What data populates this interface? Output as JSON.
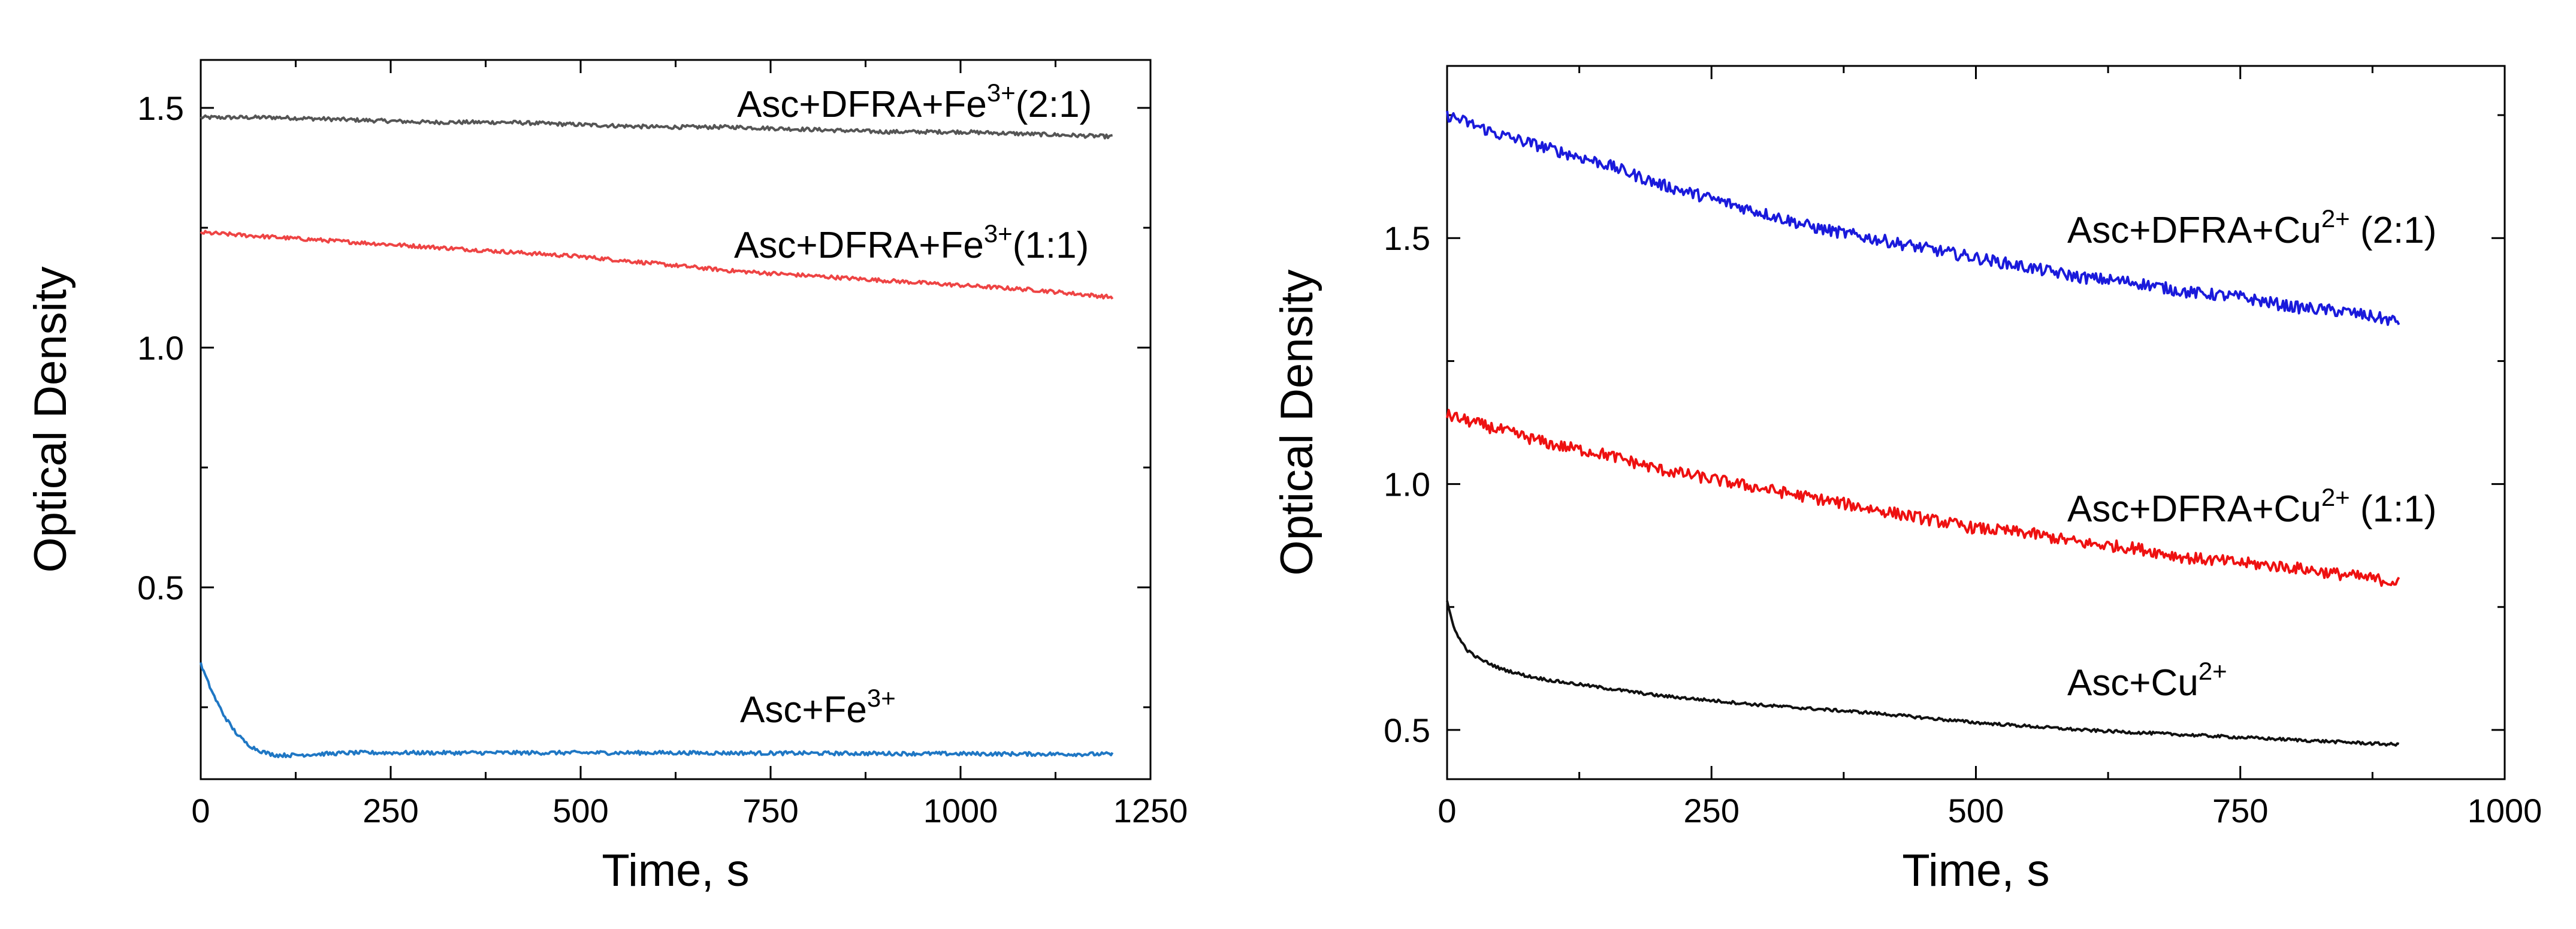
{
  "chart_data": [
    {
      "type": "line",
      "title": "",
      "xlabel": "Time, s",
      "ylabel": "Optical Density",
      "xlim": [
        0,
        1250
      ],
      "ylim": [
        0.1,
        1.6
      ],
      "xticks": [
        "0",
        "250",
        "500",
        "750",
        "1000",
        "1250"
      ],
      "yticks": [
        "0.5",
        "1.0",
        "1.5"
      ],
      "series": [
        {
          "name": "Asc+DFRA+Fe3+(2:1)",
          "label_main": "Asc+DFRA+Fe",
          "label_sup": "3+",
          "label_tail": "(2:1)",
          "color": "#555555",
          "x": [
            0,
            100,
            200,
            300,
            400,
            500,
            600,
            700,
            800,
            900,
            1000,
            1100,
            1200
          ],
          "values": [
            1.48,
            1.48,
            1.475,
            1.47,
            1.47,
            1.465,
            1.46,
            1.46,
            1.455,
            1.45,
            1.45,
            1.445,
            1.44
          ]
        },
        {
          "name": "Asc+DFRA+Fe3+(1:1)",
          "label_main": "Asc+DFRA+Fe",
          "label_sup": "3+",
          "label_tail": "(1:1)",
          "color": "#ee4444",
          "x": [
            0,
            100,
            200,
            300,
            400,
            500,
            600,
            700,
            800,
            900,
            1000,
            1100,
            1200
          ],
          "values": [
            1.24,
            1.23,
            1.22,
            1.21,
            1.2,
            1.19,
            1.175,
            1.16,
            1.15,
            1.14,
            1.13,
            1.12,
            1.105
          ]
        },
        {
          "name": "Asc+Fe3+",
          "label_main": "Asc+Fe",
          "label_sup": "3+",
          "label_tail": "",
          "color": "#1f77c4",
          "x": [
            0,
            10,
            20,
            30,
            40,
            50,
            60,
            70,
            80,
            90,
            100,
            120,
            150,
            200,
            300,
            400,
            600,
            800,
            1000,
            1200
          ],
          "values": [
            0.34,
            0.3,
            0.265,
            0.235,
            0.21,
            0.19,
            0.175,
            0.165,
            0.158,
            0.153,
            0.15,
            0.15,
            0.152,
            0.155,
            0.155,
            0.155,
            0.155,
            0.154,
            0.153,
            0.152
          ]
        }
      ]
    },
    {
      "type": "line",
      "title": "",
      "xlabel": "Time, s",
      "ylabel": "Optical Density",
      "xlim": [
        0,
        1000
      ],
      "ylim": [
        0.4,
        1.85
      ],
      "xticks": [
        "0",
        "250",
        "500",
        "750",
        "1000"
      ],
      "yticks": [
        "0.5",
        "1.0",
        "1.5"
      ],
      "series": [
        {
          "name": "Asc+DFRA+Cu2+ (2:1)",
          "label_main": "Asc+DFRA+Cu",
          "label_sup": "2+",
          "label_tail": " (2:1)",
          "color": "#1a1adb",
          "x": [
            0,
            50,
            100,
            150,
            200,
            250,
            300,
            350,
            400,
            450,
            500,
            550,
            600,
            650,
            700,
            750,
            800,
            850,
            900
          ],
          "values": [
            1.75,
            1.71,
            1.68,
            1.65,
            1.61,
            1.58,
            1.55,
            1.52,
            1.5,
            1.48,
            1.46,
            1.44,
            1.42,
            1.41,
            1.39,
            1.38,
            1.36,
            1.35,
            1.33
          ]
        },
        {
          "name": "Asc+DFRA+Cu2+ (1:1)",
          "label_main": "Asc+DFRA+Cu",
          "label_sup": "2+",
          "label_tail": " (1:1)",
          "color": "#ee1111",
          "x": [
            0,
            50,
            100,
            150,
            200,
            250,
            300,
            350,
            400,
            450,
            500,
            550,
            600,
            650,
            700,
            750,
            800,
            850,
            900
          ],
          "values": [
            1.14,
            1.11,
            1.08,
            1.06,
            1.03,
            1.01,
            0.99,
            0.97,
            0.95,
            0.93,
            0.91,
            0.9,
            0.88,
            0.87,
            0.85,
            0.84,
            0.83,
            0.815,
            0.8
          ]
        },
        {
          "name": "Asc+Cu2+",
          "label_main": "Asc+Cu",
          "label_sup": "2+",
          "label_tail": "",
          "color": "#111111",
          "x": [
            0,
            5,
            10,
            20,
            30,
            50,
            75,
            100,
            150,
            200,
            300,
            400,
            500,
            600,
            700,
            800,
            900
          ],
          "values": [
            0.76,
            0.72,
            0.69,
            0.66,
            0.645,
            0.625,
            0.61,
            0.6,
            0.585,
            0.57,
            0.55,
            0.535,
            0.515,
            0.5,
            0.49,
            0.48,
            0.47
          ]
        }
      ]
    }
  ]
}
